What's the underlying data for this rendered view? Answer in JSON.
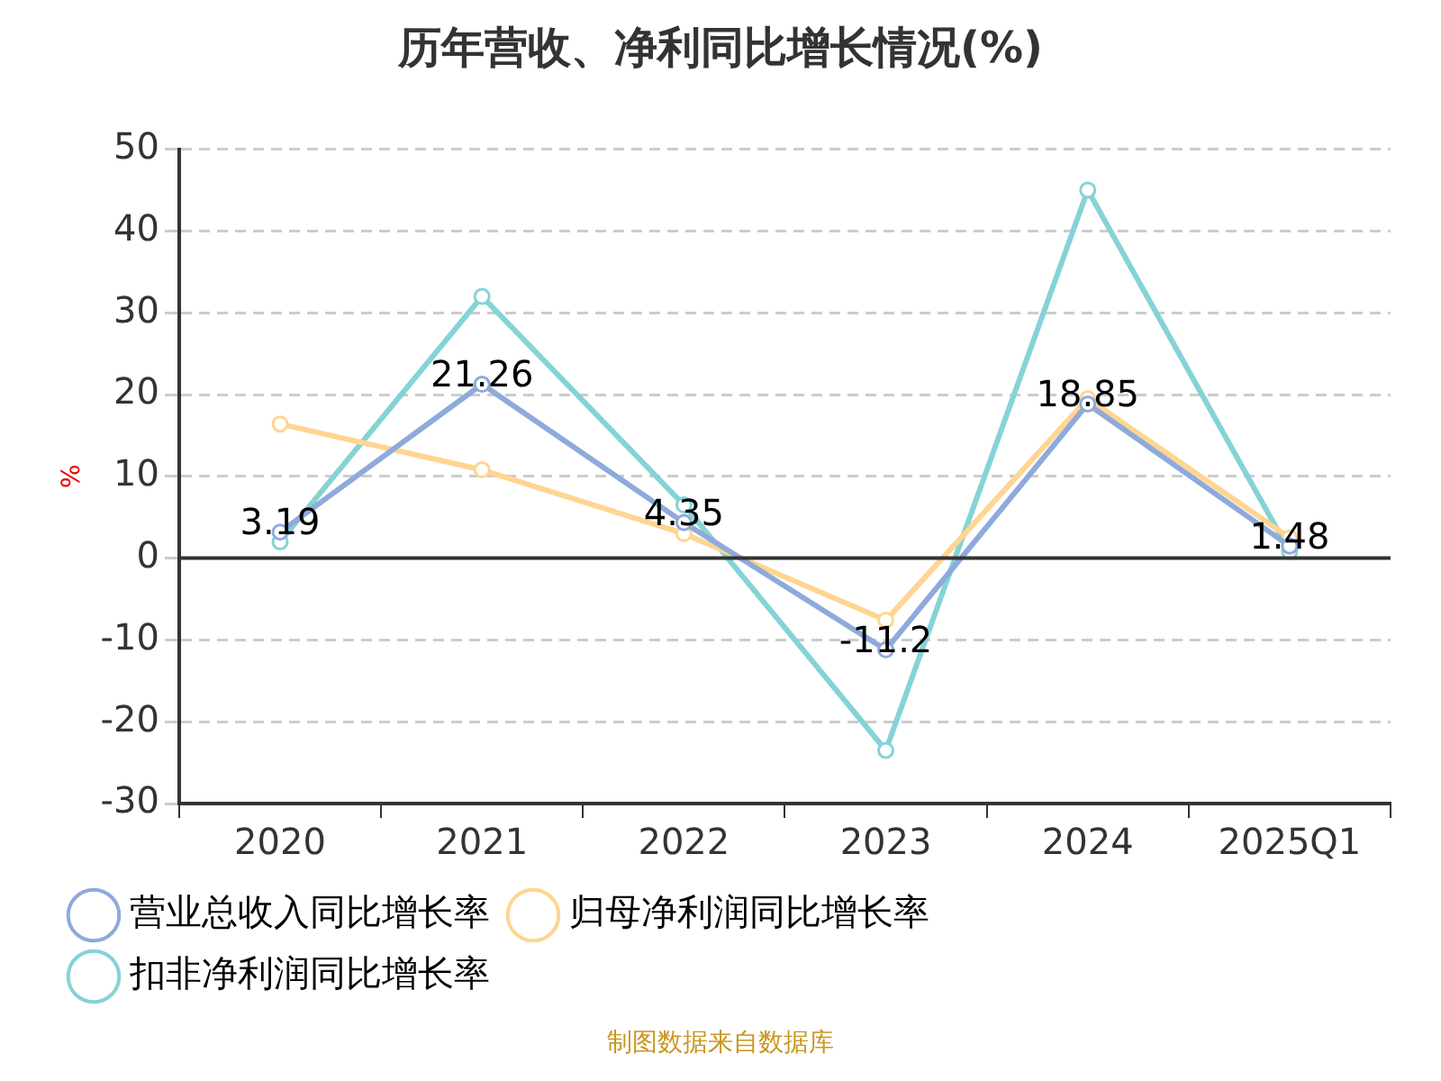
{
  "chart_data": {
    "type": "line",
    "title": "历年营收、净利同比增长情况(%)",
    "ylabel": "%",
    "categories": [
      "2020",
      "2021",
      "2022",
      "2023",
      "2024",
      "2025Q1"
    ],
    "series": [
      {
        "name": "营业总收入同比增长率",
        "color": "#8eaadb",
        "values": [
          3.19,
          21.26,
          4.35,
          -11.2,
          18.85,
          1.48
        ],
        "value_labels": [
          "3.19",
          "21.26",
          "4.35",
          "-11.2",
          "18.85",
          "1.48"
        ]
      },
      {
        "name": "归母净利润同比增长率",
        "color": "#ffd591",
        "values": [
          16.4,
          10.8,
          3,
          -7.6,
          19.5,
          2.5
        ]
      },
      {
        "name": "扣非净利润同比增长率",
        "color": "#85d3d6",
        "values": [
          2,
          32,
          6.5,
          -23.5,
          45,
          0.8
        ]
      }
    ],
    "ylim": [
      -30,
      50
    ],
    "yticks": [
      -30,
      -20,
      -10,
      0,
      10,
      20,
      30,
      40,
      50
    ],
    "grid": "y",
    "ref_lines": [
      {
        "axis": "y",
        "value": 0,
        "color": "#333333"
      }
    ],
    "legend": "bottom",
    "marker": "circle",
    "line_style": "solid",
    "annotations": [
      "制图数据来自数据库"
    ]
  }
}
